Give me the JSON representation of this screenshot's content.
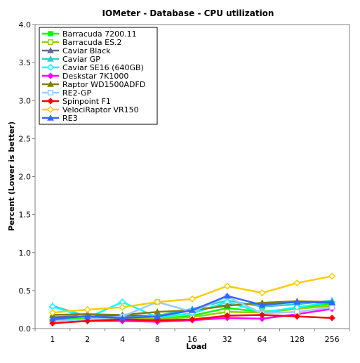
{
  "chart_data": {
    "type": "line",
    "title": "IOMeter - Database - CPU utilization",
    "xlabel": "Load",
    "ylabel": "Percent (Lower is better)",
    "categories": [
      "1",
      "2",
      "4",
      "8",
      "16",
      "32",
      "64",
      "128",
      "256"
    ],
    "ylim": [
      0,
      4
    ],
    "yticks": [
      "0.0",
      "0.5",
      "1.0",
      "1.5",
      "2.0",
      "2.5",
      "3.0",
      "3.5",
      "4.0"
    ],
    "grid": false,
    "legend_position": "top-left",
    "series": [
      {
        "name": "Barracuda 7200.11",
        "color": "#00ff00",
        "marker": "square",
        "values": [
          0.12,
          0.13,
          0.14,
          0.13,
          0.17,
          0.27,
          0.22,
          0.27,
          0.33
        ]
      },
      {
        "name": "Barracuda ES.2",
        "color": "#99cc00",
        "marker": "square-open",
        "values": [
          0.11,
          0.12,
          0.14,
          0.13,
          0.15,
          0.22,
          0.21,
          0.26,
          0.3
        ]
      },
      {
        "name": "Caviar Black",
        "color": "#666699",
        "marker": "triangle",
        "values": [
          0.15,
          0.17,
          0.17,
          0.17,
          0.24,
          0.31,
          0.33,
          0.35,
          0.34
        ]
      },
      {
        "name": "Caviar GP",
        "color": "#33cccc",
        "marker": "triangle",
        "values": [
          0.3,
          0.16,
          0.14,
          0.17,
          0.26,
          0.37,
          0.29,
          0.32,
          0.37
        ]
      },
      {
        "name": "Caviar SE16 (640GB)",
        "color": "#00ffff",
        "marker": "diamond-open",
        "values": [
          0.29,
          0.14,
          0.35,
          0.15,
          0.2,
          0.35,
          0.21,
          0.28,
          0.35
        ]
      },
      {
        "name": "Deskstar 7K1000",
        "color": "#ff00ff",
        "marker": "diamond",
        "values": [
          0.12,
          0.1,
          0.1,
          0.09,
          0.11,
          0.14,
          0.13,
          0.19,
          0.26
        ]
      },
      {
        "name": "Raptor WD1500ADFD",
        "color": "#808000",
        "marker": "triangle",
        "values": [
          0.18,
          0.19,
          0.18,
          0.22,
          0.24,
          0.3,
          0.34,
          0.36,
          0.35
        ]
      },
      {
        "name": "RE2-GP",
        "color": "#99ccff",
        "marker": "square-open",
        "values": [
          0.1,
          0.12,
          0.16,
          0.35,
          0.22,
          0.42,
          0.2,
          0.22,
          0.28
        ]
      },
      {
        "name": "Spinpoint F1",
        "color": "#ff0000",
        "marker": "diamond",
        "values": [
          0.07,
          0.1,
          0.12,
          0.11,
          0.12,
          0.17,
          0.18,
          0.16,
          0.14
        ]
      },
      {
        "name": "VelociRaptor VR150",
        "color": "#ffcc00",
        "marker": "diamond-open",
        "values": [
          0.21,
          0.25,
          0.28,
          0.35,
          0.39,
          0.56,
          0.47,
          0.6,
          0.69
        ]
      },
      {
        "name": "RE3",
        "color": "#3366ff",
        "marker": "triangle",
        "values": [
          0.13,
          0.16,
          0.14,
          0.16,
          0.24,
          0.43,
          0.31,
          0.35,
          0.34
        ]
      }
    ]
  }
}
